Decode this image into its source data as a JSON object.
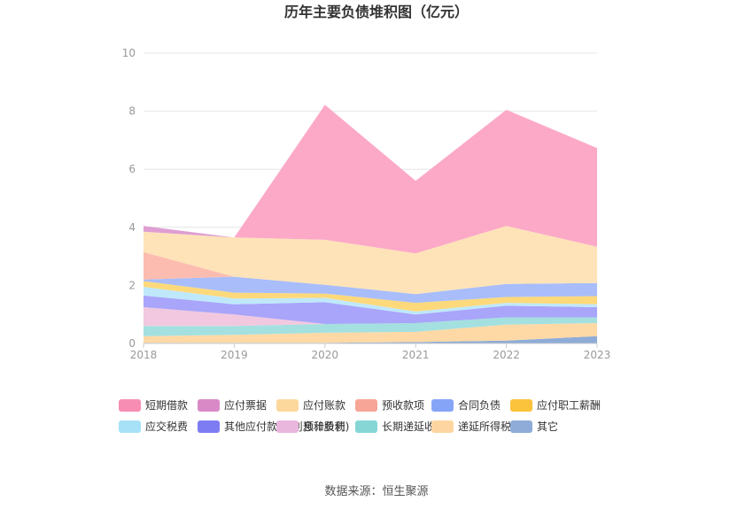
{
  "chart_data": {
    "type": "area",
    "stacked": true,
    "title": "历年主要负债堆积图（亿元）",
    "x": [
      "2018",
      "2019",
      "2020",
      "2021",
      "2022",
      "2023"
    ],
    "ylim": [
      0,
      10
    ],
    "yticks": [
      "0",
      "2",
      "4",
      "6",
      "8",
      "10"
    ],
    "grid": true,
    "legend_position": "bottom",
    "series": [
      {
        "name": "其它",
        "color": "#8eacd7",
        "values": [
          0.02,
          0.02,
          0.02,
          0.05,
          0.1,
          0.25
        ]
      },
      {
        "name": "递延所得税负债",
        "color": "#fed9a6",
        "values": [
          0.23,
          0.28,
          0.35,
          0.35,
          0.55,
          0.45
        ]
      },
      {
        "name": "长期递延收益",
        "color": "#a4e0e0",
        "values": [
          0.35,
          0.3,
          0.3,
          0.3,
          0.25,
          0.2
        ]
      },
      {
        "name": "预计负债",
        "color": "#f1c8e0",
        "values": [
          0.65,
          0.4,
          0.0,
          0.0,
          0.0,
          0.0
        ]
      },
      {
        "name": "其他应付款(含利息和股利)",
        "color": "#a8a5fa",
        "values": [
          0.4,
          0.35,
          0.75,
          0.3,
          0.4,
          0.35
        ]
      },
      {
        "name": "应交税费",
        "color": "#bfe8fb",
        "values": [
          0.3,
          0.2,
          0.15,
          0.1,
          0.1,
          0.1
        ]
      },
      {
        "name": "应付职工薪酬",
        "color": "#fdd97b",
        "values": [
          0.2,
          0.2,
          0.15,
          0.3,
          0.2,
          0.28
        ]
      },
      {
        "name": "合同负债",
        "color": "#a8bdfa",
        "values": [
          0.05,
          0.55,
          0.3,
          0.3,
          0.45,
          0.45
        ]
      },
      {
        "name": "预收款项",
        "color": "#fdbcb0",
        "values": [
          0.95,
          0.0,
          0.0,
          0.0,
          0.0,
          0.0
        ]
      },
      {
        "name": "应付账款",
        "color": "#fee3b8",
        "values": [
          0.7,
          1.35,
          1.55,
          1.4,
          2.0,
          1.25
        ]
      },
      {
        "name": "应付票据",
        "color": "#de9ed2",
        "values": [
          0.2,
          0.0,
          0.0,
          0.0,
          0.0,
          0.0
        ]
      },
      {
        "name": "短期借款",
        "color": "#fca9c8",
        "values": [
          0.0,
          0.0,
          4.65,
          2.5,
          4.0,
          3.4
        ]
      }
    ],
    "legend": [
      {
        "name": "短期借款",
        "color": "#f78db3"
      },
      {
        "name": "应付票据",
        "color": "#d98ac6"
      },
      {
        "name": "应付账款",
        "color": "#fcd89d"
      },
      {
        "name": "预收款项",
        "color": "#f7a596"
      },
      {
        "name": "合同负债",
        "color": "#86a4f7"
      },
      {
        "name": "应付职工薪酬",
        "color": "#fbc23b"
      },
      {
        "name": "应交税费",
        "color": "#a6e1f7"
      },
      {
        "name": "其他应付款(含利息和股利)",
        "color": "#7e7cf3"
      },
      {
        "name": "预计负债",
        "color": "#e9b6de"
      },
      {
        "name": "长期递延收益",
        "color": "#86d6d6"
      },
      {
        "name": "递延所得税负债",
        "color": "#fdd5a0"
      },
      {
        "name": "其它",
        "color": "#8eacd7"
      }
    ]
  },
  "footer": {
    "source": "数据来源：恒生聚源"
  }
}
